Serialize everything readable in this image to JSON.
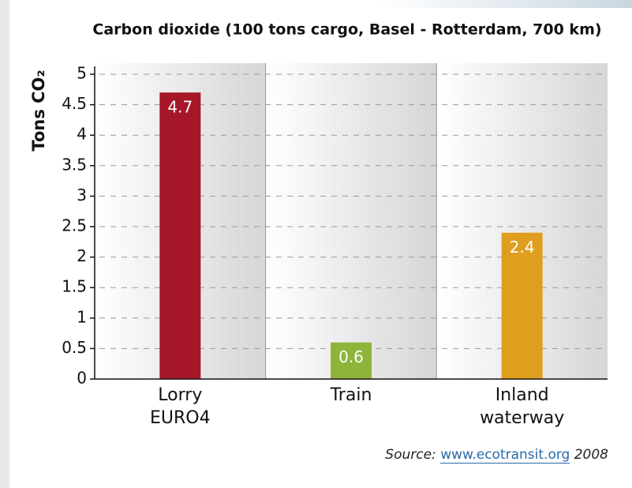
{
  "chart_data": {
    "type": "bar",
    "title": "Carbon dioxide (100 tons cargo, Basel - Rotterdam, 700 km)",
    "y_label": "Tons CO₂",
    "categories": [
      "Lorry\nEURO4",
      "Train",
      "Inland\nwaterway"
    ],
    "values": [
      4.7,
      0.6,
      2.4
    ],
    "colors": [
      "#a6172a",
      "#8db53b",
      "#e09e1e"
    ],
    "ylim": [
      0,
      5
    ],
    "yticks": [
      0,
      0.5,
      1,
      1.5,
      2,
      2.5,
      3,
      3.5,
      4,
      4.5,
      5
    ],
    "grid": true,
    "source_label": "Source:",
    "source_url": "www.ecotransit.org",
    "source_year": "2008"
  }
}
